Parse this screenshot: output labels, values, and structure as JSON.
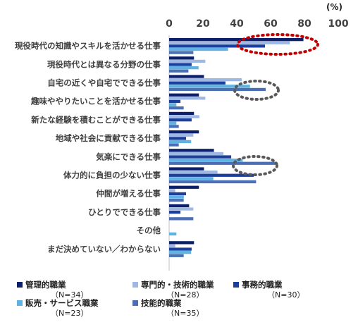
{
  "chart_data": {
    "type": "bar",
    "orientation": "horizontal",
    "unit": "(%)",
    "xlim": [
      0,
      100
    ],
    "xticks": [
      0,
      20,
      40,
      60,
      80,
      100
    ],
    "grid": false,
    "legend_position": "bottom",
    "categories": [
      "現役時代の知識やスキルを活かせる仕事",
      "現役時代とは異なる分野の仕事",
      "自宅の近くや自宅でできる仕事",
      "趣味ややりたいことを活かせる仕事",
      "新たな経験を積むことができる仕事",
      "地域や社会に貢献できる仕事",
      "気楽にできる仕事",
      "体力的に負担の少ない仕事",
      "仲間が増える仕事",
      "ひとりでできる仕事",
      "その他",
      "まだ決めていない／わからない"
    ],
    "series": [
      {
        "name": "管理的職業",
        "n": "（N=34）",
        "color": "#0b1f6b",
        "values": [
          79.4,
          14.7,
          20.6,
          17.6,
          14.7,
          17.6,
          26.5,
          20.6,
          17.6,
          11.8,
          0,
          14.7
        ]
      },
      {
        "name": "専門的・技術的職業",
        "n": "（N=28）",
        "color": "#9fb8e3",
        "values": [
          71.4,
          21.4,
          42.9,
          21.4,
          17.9,
          14.3,
          32.1,
          28.6,
          3.6,
          14.3,
          0,
          3.6
        ]
      },
      {
        "name": "事務的職業",
        "n": "（N=30）",
        "color": "#1b3f9a",
        "values": [
          56.7,
          13.3,
          33.3,
          6.7,
          13.3,
          10.0,
          36.7,
          50.0,
          10.0,
          6.7,
          0,
          13.3
        ]
      },
      {
        "name": "販売・サービス職業",
        "n": "（N=23）",
        "color": "#5fb2e2",
        "values": [
          34.8,
          17.4,
          47.8,
          4.3,
          4.3,
          13.0,
          43.5,
          26.1,
          8.7,
          0,
          4.3,
          13.0
        ]
      },
      {
        "name": "技能的職業",
        "n": "（N=35）",
        "color": "#4a6fb5",
        "values": [
          14.3,
          11.4,
          57.1,
          8.6,
          5.7,
          5.7,
          62.9,
          51.4,
          8.6,
          14.3,
          0,
          8.6
        ]
      }
    ]
  }
}
